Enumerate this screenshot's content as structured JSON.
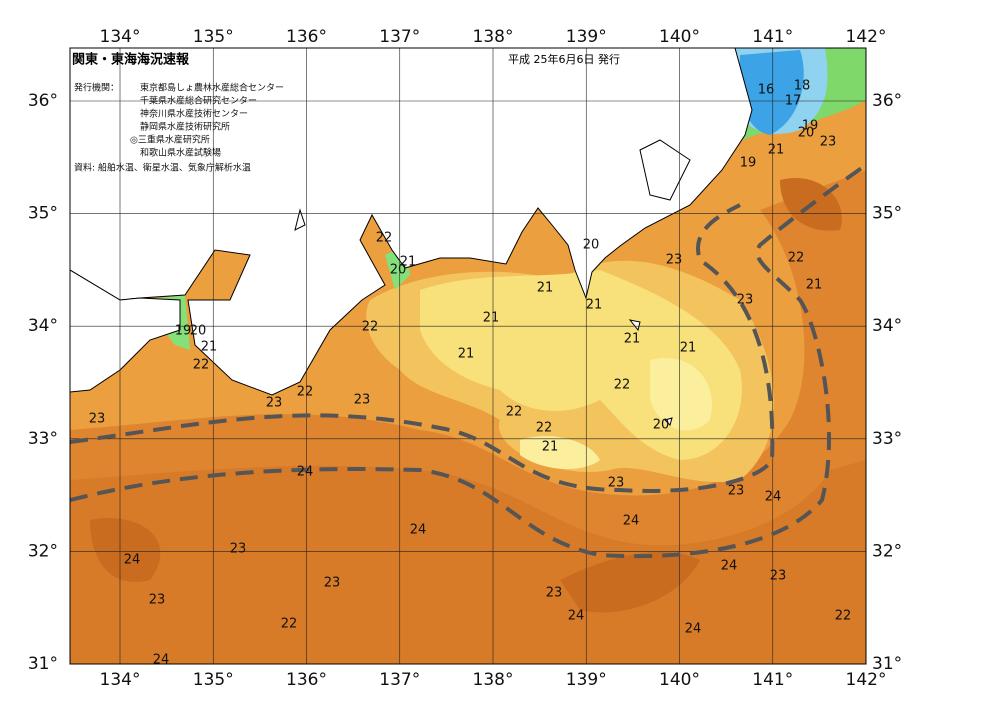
{
  "header": {
    "title": "関東・東海海況速報",
    "date": "平成 25年6月6日 発行"
  },
  "issuers": {
    "label": "発行機関：",
    "agencies": [
      "東京都島しょ農林水産総合センター",
      "千葉県水産総合研究センター",
      "神奈川県水産技術センター",
      "静岡県水産技術研究所",
      "◎三重県水産研究所",
      "和歌山県水産試験場"
    ]
  },
  "source": "資料: 船舶水温、衛星水温、気象庁解析水温",
  "longitude_labels": [
    "134°",
    "135°",
    "136°",
    "137°",
    "138°",
    "139°",
    "140°",
    "141°",
    "142°"
  ],
  "latitude_labels": [
    "31°",
    "32°",
    "33°",
    "34°",
    "35°",
    "36°"
  ],
  "isotherm_labels": [
    "16",
    "18",
    "17",
    "19",
    "20",
    "21",
    "23",
    "19",
    "22",
    "21",
    "20",
    "20",
    "23",
    "22",
    "21",
    "21",
    "23",
    "21",
    "21",
    "22",
    "19",
    "20",
    "21",
    "21",
    "21",
    "21",
    "22",
    "22",
    "23",
    "22",
    "23",
    "22",
    "23",
    "22",
    "21",
    "20",
    "24",
    "23",
    "23",
    "24",
    "24",
    "24",
    "23",
    "24",
    "24",
    "23",
    "23",
    "23",
    "23",
    "24",
    "22",
    "22",
    "24",
    "24"
  ]
}
